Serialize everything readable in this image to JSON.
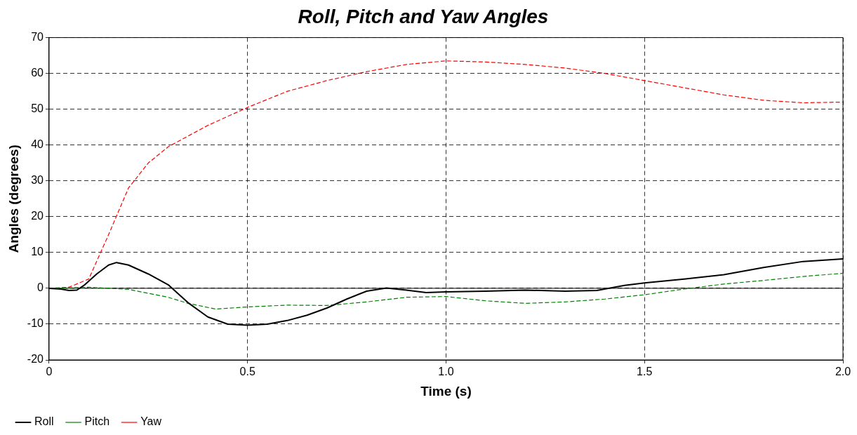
{
  "chart_data": {
    "type": "line",
    "title": "Roll, Pitch and Yaw Angles",
    "xlabel": "Time (s)",
    "ylabel": "Angles (degrees)",
    "xlim": [
      0,
      2
    ],
    "xticks": [
      0,
      0.5,
      {
        "value": 1,
        "label": "1.0"
      },
      1.5,
      {
        "value": 2,
        "label": "2.0"
      }
    ],
    "ylim": [
      -20,
      70
    ],
    "yticks": [
      -20,
      -10,
      0,
      10,
      20,
      30,
      40,
      50,
      60,
      70
    ],
    "grid": true,
    "legend": "bottom left",
    "marker": "none",
    "ref_lines": [
      {
        "axis": "y",
        "value": 0,
        "color": "#000000",
        "line_style": "solid"
      }
    ],
    "series": [
      {
        "name": "Roll",
        "color": "#000000",
        "line_style": "solid",
        "x": [
          0,
          0.03,
          0.05,
          0.07,
          0.09,
          0.12,
          0.15,
          0.17,
          0.2,
          0.25,
          0.3,
          0.35,
          0.4,
          0.45,
          0.5,
          0.55,
          0.6,
          0.65,
          0.7,
          0.75,
          0.8,
          0.85,
          0.9,
          0.95,
          1.0,
          1.1,
          1.2,
          1.3,
          1.38,
          1.45,
          1.5,
          1.6,
          1.7,
          1.8,
          1.9,
          2.0
        ],
        "values": [
          0,
          -0.2,
          -0.6,
          -0.5,
          1,
          4,
          6.5,
          7.2,
          6.5,
          4,
          1,
          -4,
          -8,
          -10,
          -10.3,
          -10,
          -9,
          -7.5,
          -5.5,
          -3,
          -0.8,
          0.1,
          -0.5,
          -1.2,
          -1,
          -0.8,
          -0.5,
          -0.8,
          -0.6,
          0.8,
          1.5,
          2.6,
          3.8,
          5.8,
          7.5,
          8.2
        ]
      },
      {
        "name": "Pitch",
        "color": "#008000",
        "line_style": "dashed",
        "x": [
          0,
          0.1,
          0.2,
          0.3,
          0.35,
          0.42,
          0.5,
          0.6,
          0.7,
          0.8,
          0.9,
          1.0,
          1.1,
          1.2,
          1.3,
          1.4,
          1.5,
          1.6,
          1.7,
          1.8,
          1.9,
          2.0
        ],
        "values": [
          0,
          0.3,
          -0.3,
          -2.5,
          -4.2,
          -5.8,
          -5.2,
          -4.7,
          -4.8,
          -3.8,
          -2.5,
          -2.3,
          -3.5,
          -4.2,
          -3.8,
          -3,
          -1.8,
          -0.2,
          1.2,
          2.2,
          3.3,
          4.2
        ]
      },
      {
        "name": "Yaw",
        "color": "#ff0000",
        "line_style": "dashed",
        "x": [
          0,
          0.05,
          0.1,
          0.15,
          0.2,
          0.25,
          0.3,
          0.4,
          0.5,
          0.6,
          0.7,
          0.8,
          0.9,
          1.0,
          1.1,
          1.2,
          1.3,
          1.4,
          1.5,
          1.6,
          1.7,
          1.8,
          1.9,
          2.0
        ],
        "values": [
          0,
          0.3,
          2.6,
          15,
          28,
          35,
          39.5,
          45.5,
          50.5,
          55,
          58,
          60.5,
          62.5,
          63.5,
          63.2,
          62.5,
          61.5,
          60,
          58,
          56,
          54,
          52.5,
          51.8,
          52
        ]
      }
    ]
  }
}
